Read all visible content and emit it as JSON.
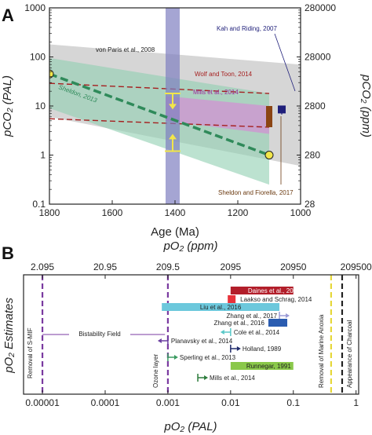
{
  "panel_a_label": "A",
  "panel_b_label": "B",
  "colors": {
    "grey_band": "#c8c8c8",
    "green_band": "#8fcfb0",
    "green_line": "#2f8a5a",
    "pink_band": "#e07ad8",
    "purple_band": "#7f7fc0",
    "red_dash": "#a51f1f",
    "yellow": "#f2e64a",
    "brown": "#8b4513",
    "navy": "#1f1f7a",
    "bistability_purple": "#7a3aa0"
  },
  "chart_data": [
    {
      "type": "line",
      "panel": "A",
      "x_axis": {
        "label": "Age (Ma)",
        "range": [
          1800,
          1000
        ],
        "ticks": [
          "1800",
          "1600",
          "1400",
          "1200",
          "1000"
        ]
      },
      "y_axis_left": {
        "label": "pCO₂ (PAL)",
        "scale": "log",
        "range": [
          0.1,
          1000
        ],
        "ticks": [
          "0.1",
          "1",
          "10",
          "100",
          "1000"
        ]
      },
      "y_axis_right": {
        "label": "pCO₂ (ppm)",
        "ticks": [
          "28",
          "280",
          "2800",
          "28000",
          "280000"
        ]
      },
      "annotations": [
        {
          "text": "von Paris et al., 2008",
          "color": "#222222"
        },
        {
          "text": "Wolf and Toon, 2014",
          "color": "#a51f1f"
        },
        {
          "text": "Mills et al., 2014",
          "color": "#9c2a9a"
        },
        {
          "text": "Sheldon, 2013",
          "color": "#2f8a5a"
        },
        {
          "text": "Kah and Riding, 2007",
          "color": "#1f1f7a"
        },
        {
          "text": "Sheldon and Fiorella, 2017",
          "color": "#6b3a10"
        }
      ],
      "series": [
        {
          "name": "von Paris et al., 2008",
          "kind": "band",
          "upper": [
            [
              1800,
              180
            ],
            [
              1000,
              70
            ]
          ],
          "lower": [
            [
              1800,
              6
            ],
            [
              1000,
              0.6
            ]
          ]
        },
        {
          "name": "Sheldon, 2013",
          "kind": "band",
          "upper": [
            [
              1800,
              95
            ],
            [
              1100,
              18
            ]
          ],
          "lower": [
            [
              1800,
              9
            ],
            [
              1100,
              0.25
            ]
          ]
        },
        {
          "name": "Sheldon, 2013",
          "kind": "line",
          "points": [
            [
              1800,
              45
            ],
            [
              1100,
              1
            ]
          ]
        },
        {
          "name": "Mills et al., 2014",
          "kind": "band",
          "upper": [
            [
              1430,
              16
            ],
            [
              1100,
              10
            ]
          ],
          "lower": [
            [
              1430,
              5
            ],
            [
              1100,
              2.7
            ]
          ]
        },
        {
          "name": "Wolf and Toon, 2014",
          "kind": "dashed",
          "lines": [
            [
              [
                1800,
                29
              ],
              [
                1100,
                18
              ]
            ],
            [
              [
                1800,
                5.5
              ],
              [
                1100,
                3.7
              ]
            ]
          ]
        },
        {
          "name": "Kah and Riding, 2007",
          "kind": "marker",
          "x": 1060,
          "y": 8.5,
          "range": [
            6.7,
            10
          ]
        },
        {
          "name": "Sheldon and Fiorella, 2017",
          "kind": "bar",
          "x": 1100,
          "range": [
            3.7,
            10
          ]
        }
      ],
      "highlight_band": {
        "x_range": [
          1430,
          1385
        ]
      },
      "markers_yellow": [
        [
          1800,
          45
        ],
        [
          1100,
          1
        ]
      ]
    },
    {
      "type": "bar",
      "panel": "B",
      "x_axis": {
        "label": "pO₂ (PAL)",
        "scale": "log",
        "range": [
          5e-06,
          1.1
        ],
        "ticks": [
          "0.00001",
          "0.0001",
          "0.001",
          "0.01",
          "0.1",
          "1"
        ]
      },
      "x_axis_top": {
        "label": "pO₂ (ppm)",
        "ticks": [
          "2.095",
          "20.95",
          "209.5",
          "2095",
          "20950",
          "209500"
        ]
      },
      "y_axis": {
        "label": "pO₂ Estimates"
      },
      "vertical_lines": [
        {
          "label": "Removal of S-MIF",
          "x": 1e-05,
          "color": "#7a3aa0"
        },
        {
          "label": "Ozone layer",
          "x": 0.001,
          "color": "#7a3aa0"
        },
        {
          "label": "Removal of Marine Anoxia",
          "x": 0.4,
          "color": "#e6d83a"
        },
        {
          "label": "Appearance of Charcoal",
          "x": 0.6,
          "color": "#222222"
        }
      ],
      "bistability": {
        "label": "Bistability Field",
        "x_range": [
          1e-05,
          0.0009
        ]
      },
      "estimates": [
        {
          "label": "Daines et al., 2016",
          "kind": "range",
          "x_range": [
            0.01,
            0.1
          ],
          "color": "#b21e2a"
        },
        {
          "label": "Laakso and Schrag, 2014",
          "kind": "range",
          "x_range": [
            0.009,
            0.012
          ],
          "color": "#e8323a"
        },
        {
          "label": "Liu et al., 2016",
          "kind": "range",
          "x_range": [
            0.0008,
            0.06
          ],
          "color": "#6cc8dc"
        },
        {
          "label": "Zhang et al., 2017",
          "kind": "lower_bound",
          "x": 0.06,
          "color": "#9a9ad6"
        },
        {
          "label": "Zhang et al., 2016",
          "kind": "range",
          "x_range": [
            0.04,
            0.08
          ],
          "color": "#2a5cb0"
        },
        {
          "label": "Cole et al., 2014",
          "kind": "upper_bound",
          "x": 0.01,
          "color": "#58c8c8"
        },
        {
          "label": "Planavsky et al., 2014",
          "kind": "upper_bound",
          "x": 0.001,
          "color": "#6a3fa0"
        },
        {
          "label": "Holland, 1989",
          "kind": "lower_bound",
          "x": 0.01,
          "color": "#1f2a6a"
        },
        {
          "label": "Sperling et al., 2013",
          "kind": "lower_bound",
          "x": 0.001,
          "color": "#3a9a60"
        },
        {
          "label": "Runnegar, 1991",
          "kind": "range",
          "x_range": [
            0.01,
            0.1
          ],
          "color": "#8ac84a"
        },
        {
          "label": "Mills et al., 2014",
          "kind": "lower_bound",
          "x": 0.003,
          "color": "#2a7a3a"
        }
      ]
    }
  ]
}
